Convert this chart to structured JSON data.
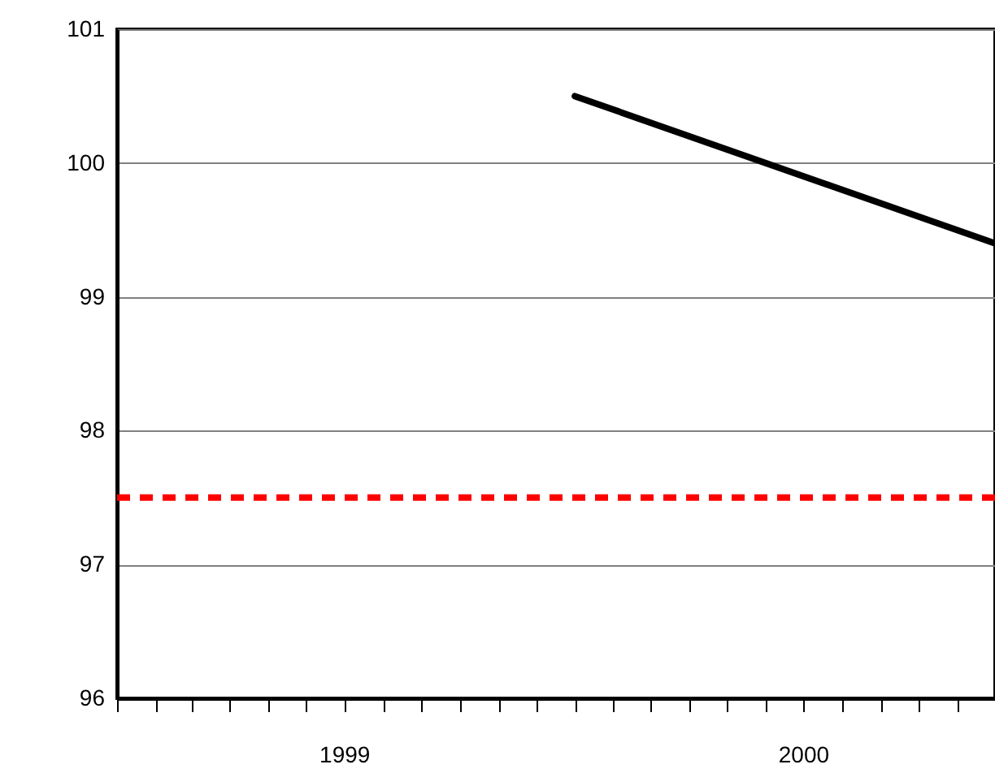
{
  "chart_data": {
    "type": "line",
    "x": [
      "2000-01",
      "2000-12"
    ],
    "series": [
      {
        "color": "#000000",
        "values": [
          100.5,
          99.4
        ]
      }
    ],
    "xlim": [
      "1999-01",
      "2000-12"
    ],
    "xticks": [
      {
        "value": "1999-01",
        "label": null
      },
      {
        "value": "1999-02",
        "label": null
      },
      {
        "value": "1999-03",
        "label": null
      },
      {
        "value": "1999-04",
        "label": null
      },
      {
        "value": "1999-05",
        "label": null
      },
      {
        "value": "1999-06",
        "label": null
      },
      {
        "value": "1999-07",
        "label": "1999"
      },
      {
        "value": "1999-08",
        "label": null
      },
      {
        "value": "1999-09",
        "label": null
      },
      {
        "value": "1999-10",
        "label": null
      },
      {
        "value": "1999-11",
        "label": null
      },
      {
        "value": "1999-12",
        "label": null
      },
      {
        "value": "2000-01",
        "label": null
      },
      {
        "value": "2000-02",
        "label": null
      },
      {
        "value": "2000-03",
        "label": null
      },
      {
        "value": "2000-04",
        "label": null
      },
      {
        "value": "2000-05",
        "label": null
      },
      {
        "value": "2000-06",
        "label": null
      },
      {
        "value": "2000-07",
        "label": "2000"
      },
      {
        "value": "2000-08",
        "label": null
      },
      {
        "value": "2000-09",
        "label": null
      },
      {
        "value": "2000-10",
        "label": null
      },
      {
        "value": "2000-11",
        "label": null
      }
    ],
    "ylim": [
      96,
      101
    ],
    "yticks": [
      96,
      97,
      98,
      99,
      100,
      101
    ],
    "grid": "y",
    "line_style": "solid",
    "ref_lines": [
      {
        "axis": "y",
        "value": 97.5,
        "color": "#ff0000",
        "line_style": "dashed"
      }
    ]
  }
}
